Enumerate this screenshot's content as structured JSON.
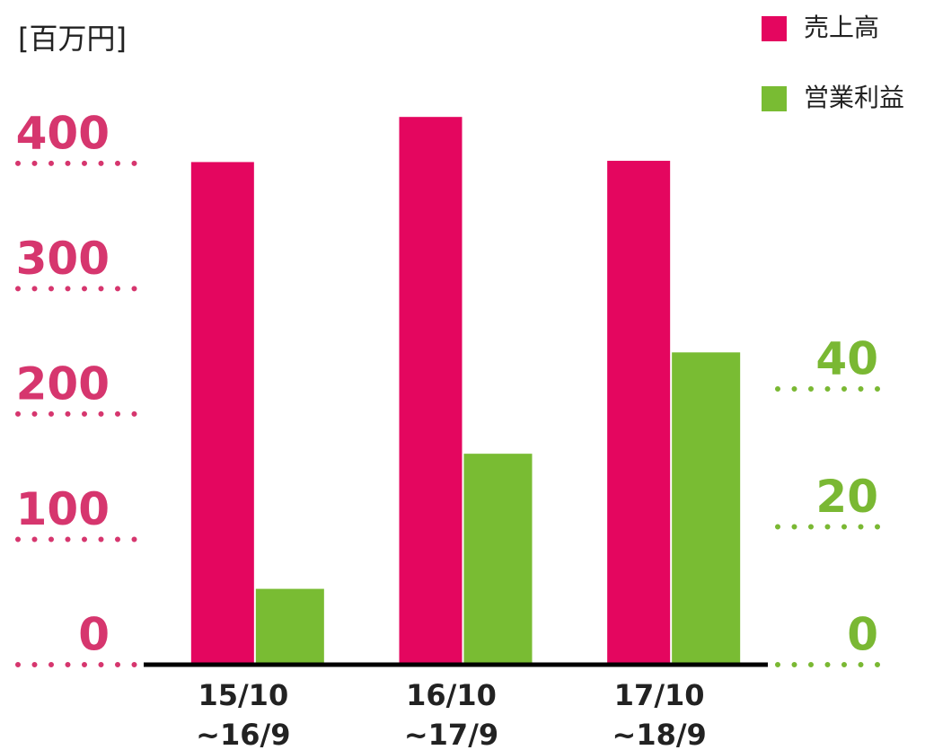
{
  "chart_data": {
    "type": "bar",
    "unit_label": "[百万円]",
    "categories": [
      "15/10\n~16/9",
      "16/10\n~17/9",
      "17/10\n~18/9"
    ],
    "series": [
      {
        "name": "売上高",
        "color": "#e4065f",
        "values": [
          401,
          437,
          402
        ]
      },
      {
        "name": "営業利益",
        "color": "#79bc33",
        "axis": "y2",
        "values": [
          11,
          30.6,
          45.3
        ]
      }
    ],
    "ylim": [
      0,
      440
    ],
    "yticks": [
      0,
      100,
      200,
      300,
      400
    ],
    "ytick_color": "#d6366e",
    "y2lim": [
      0,
      80
    ],
    "y2ticks": [
      0,
      20,
      40
    ],
    "y2tick_color": "#7ab833",
    "legend": "top-right",
    "grid": false
  }
}
